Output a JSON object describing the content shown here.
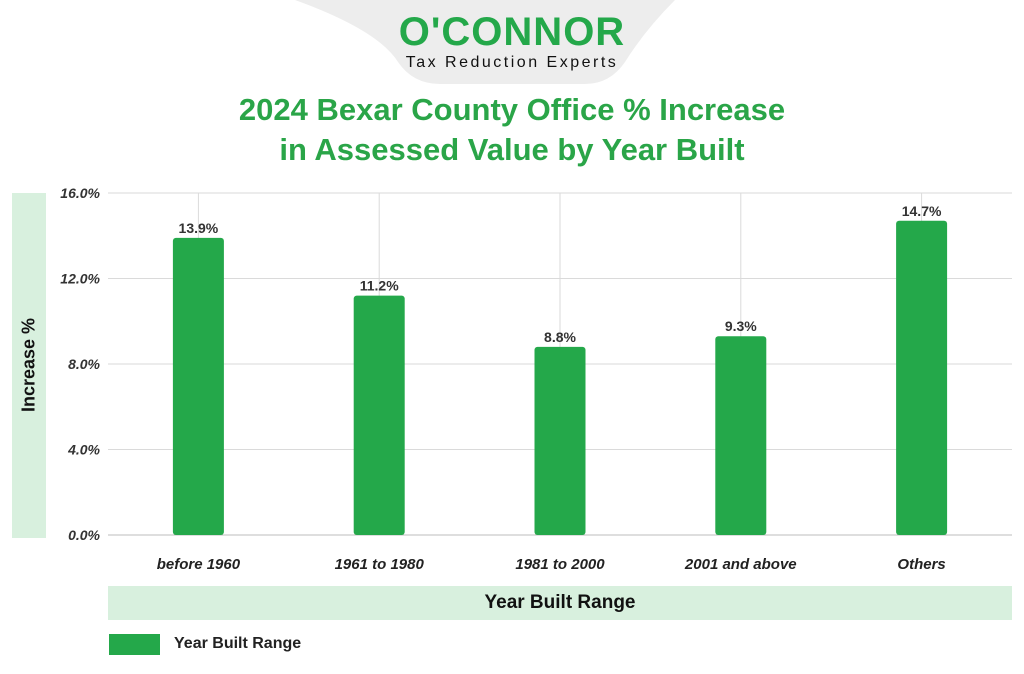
{
  "brand": {
    "name": "O'CONNOR",
    "tagline": "Tax Reduction Experts"
  },
  "colors": {
    "bar": "#24A84A",
    "title": "#2AA548",
    "band": "#D8F0DE",
    "grid": "#DADADA",
    "logo_tab": "#EDEDED"
  },
  "chart_data": {
    "type": "bar",
    "title": [
      "2024 Bexar County Office % Increase",
      "in Assessed Value by Year Built"
    ],
    "xlabel": "Year Built Range",
    "ylabel": "Increase %",
    "categories": [
      "before 1960",
      "1961 to 1980",
      "1981 to 2000",
      "2001 and above",
      "Others"
    ],
    "series": [
      {
        "name": "Year Built Range",
        "values": [
          13.9,
          11.2,
          8.8,
          9.3,
          14.7
        ]
      }
    ],
    "value_labels": [
      "13.9%",
      "11.2%",
      "8.8%",
      "9.3%",
      "14.7%"
    ],
    "yticks": [
      0,
      4,
      8,
      12,
      16
    ],
    "ytick_labels": [
      "0.0%",
      "4.0%",
      "8.0%",
      "12.0%",
      "16.0%"
    ],
    "ylim": [
      0,
      16
    ],
    "grid": true,
    "legend_position": "bottom-left"
  }
}
